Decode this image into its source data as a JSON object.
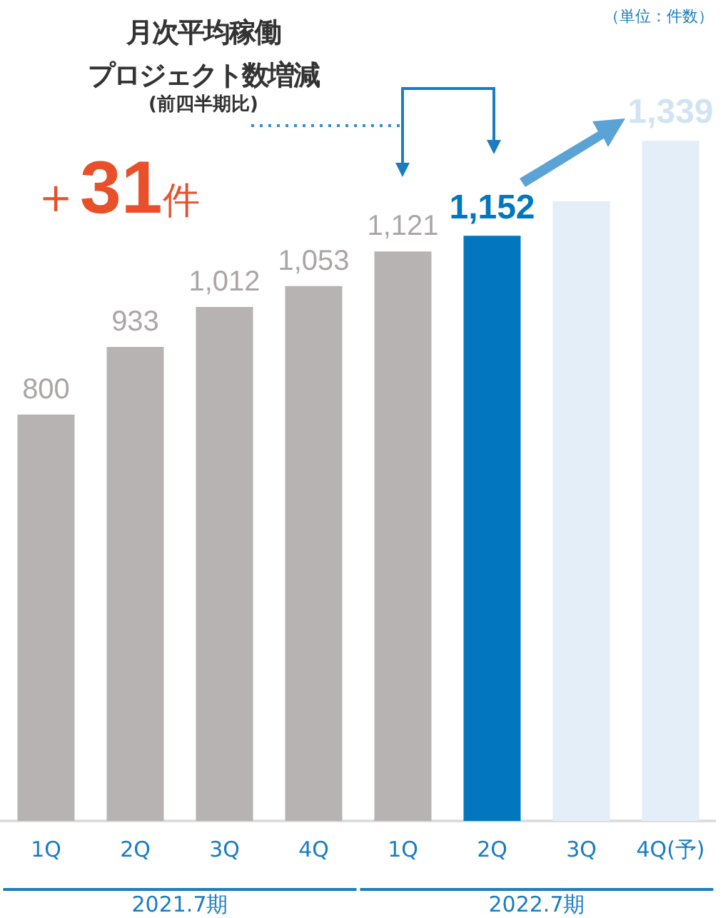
{
  "chart_data": {
    "type": "bar",
    "title": "月次平均稼働プロジェクト数増減",
    "subtitle": "(前四半期比)",
    "categories": [
      "1Q",
      "2Q",
      "3Q",
      "4Q",
      "1Q",
      "2Q",
      "3Q",
      "4Q(予)"
    ],
    "values": [
      800,
      933,
      1012,
      1053,
      1121,
      1152,
      1220,
      1339
    ],
    "colors": [
      "#b7b3b2",
      "#b7b3b2",
      "#b7b3b2",
      "#b7b3b2",
      "#b7b3b2",
      "#0277c0",
      "#e3eef8",
      "#e3eef8"
    ],
    "value_labels": [
      "800",
      "933",
      "1,012",
      "1,053",
      "1,121",
      "1,152",
      null,
      "1,339"
    ],
    "annotations": [
      "（単位：件数）",
      "＋31件",
      "2021.7期",
      "2022.7期"
    ],
    "grid": false,
    "legend": false
  }
}
